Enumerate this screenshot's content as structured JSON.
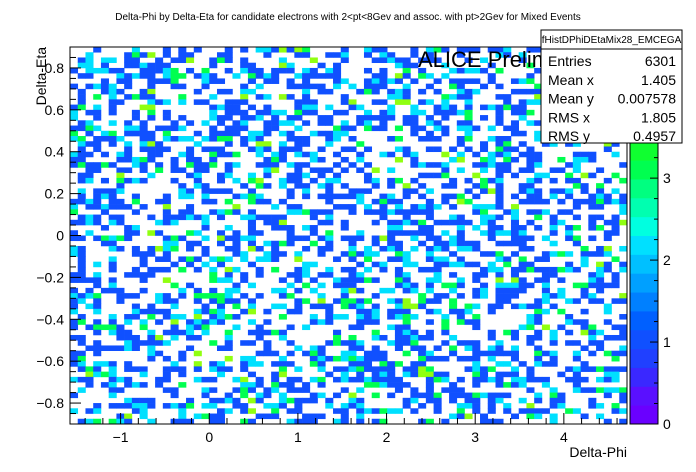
{
  "chart_data": {
    "type": "heatmap",
    "title": "Delta-Phi by Delta-Eta for candidate electrons with 2<pt<8Gev and assoc. with pt>2Gev for Mixed Events",
    "xlabel": "Delta-Phi",
    "ylabel": "Delta-Eta",
    "annotation": "ALICE Preliminary",
    "xlim": [
      -1.5708,
      4.7124
    ],
    "ylim": [
      -0.9,
      0.9
    ],
    "bins": {
      "nx": 72,
      "ny": 72
    },
    "x_ticks": [
      "−1",
      "0",
      "1",
      "2",
      "3",
      "4"
    ],
    "x_tick_values": [
      -1,
      0,
      1,
      2,
      3,
      4
    ],
    "y_ticks": [
      "−0.8",
      "−0.6",
      "−0.4",
      "−0.2",
      "0",
      "0.2",
      "0.4",
      "0.6",
      "0.8"
    ],
    "y_tick_values": [
      -0.8,
      -0.6,
      -0.4,
      -0.2,
      0,
      0.2,
      0.4,
      0.6,
      0.8
    ],
    "zlim": [
      0,
      4.6
    ],
    "z_ticks": [
      "0",
      "1",
      "2",
      "3",
      "4"
    ],
    "z_tick_values": [
      0,
      1,
      2,
      3,
      4
    ],
    "palette": [
      "#6a00ff",
      "#5a10ff",
      "#3a28ff",
      "#2040ff",
      "#1050ff",
      "#0060ff",
      "#0080ff",
      "#00a0ff",
      "#00c0ff",
      "#00e0ff",
      "#00ffe0",
      "#00ffb0",
      "#00ff80",
      "#00ff50",
      "#10ff30",
      "#30ff20",
      "#60ff10",
      "#90ff10",
      "#b8ff10",
      "#d8ff10"
    ],
    "occupancy": 0.47,
    "count_fractions": {
      "1": 0.62,
      "2": 0.26,
      "3": 0.09,
      "4": 0.03
    },
    "stats": {
      "name": "fHistDPhiDEtaMix28_EMCEGA",
      "rows": [
        {
          "label": "Entries",
          "value": "6301"
        },
        {
          "label": "Mean x",
          "value": "1.405"
        },
        {
          "label": "Mean y",
          "value": "0.007578"
        },
        {
          "label": "RMS x",
          "value": "1.805"
        },
        {
          "label": "RMS y",
          "value": "0.4957"
        }
      ]
    }
  }
}
